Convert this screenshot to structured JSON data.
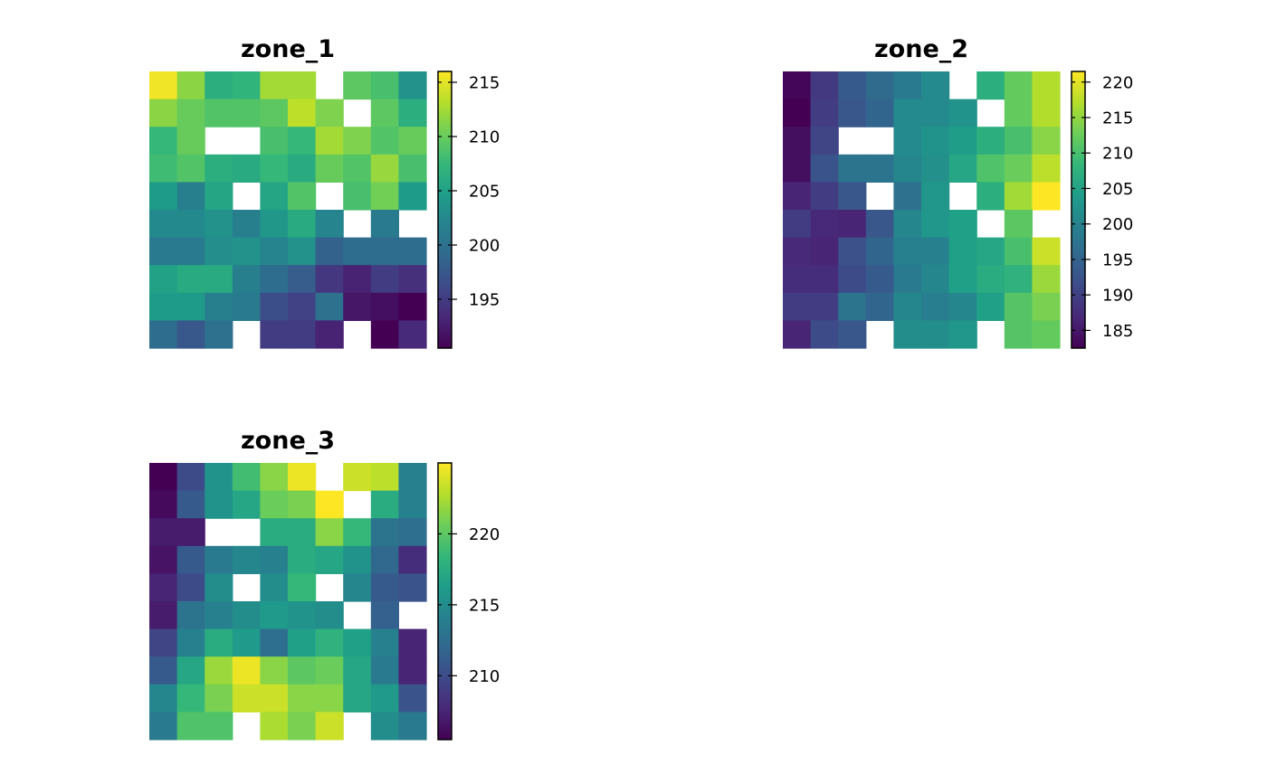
{
  "chart_data": [
    {
      "type": "heatmap",
      "title": "zone_1",
      "colorbar": {
        "range": [
          190.5,
          216
        ],
        "ticks": [
          215,
          210,
          205,
          200,
          195
        ]
      },
      "values": [
        [
          215.5,
          211.5,
          206.5,
          207.0,
          212.5,
          212.5,
          null,
          209.5,
          208.5,
          203.5
        ],
        [
          211.5,
          210.0,
          209.0,
          209.0,
          209.5,
          213.5,
          211.0,
          null,
          209.5,
          206.5
        ],
        [
          207.5,
          210.0,
          null,
          null,
          208.5,
          207.5,
          212.5,
          211.0,
          209.0,
          210.0
        ],
        [
          208.0,
          209.0,
          206.5,
          206.0,
          207.5,
          206.0,
          210.0,
          209.0,
          212.0,
          208.5
        ],
        [
          204.5,
          201.5,
          205.5,
          null,
          205.5,
          209.0,
          null,
          208.5,
          210.5,
          204.5
        ],
        [
          202.5,
          202.5,
          203.5,
          201.5,
          204.0,
          206.0,
          202.0,
          null,
          201.0,
          null
        ],
        [
          201.0,
          201.0,
          203.0,
          203.5,
          202.0,
          203.5,
          198.5,
          199.5,
          199.5,
          199.5
        ],
        [
          205.0,
          206.0,
          206.0,
          201.5,
          199.5,
          198.0,
          194.5,
          193.0,
          195.0,
          194.0
        ],
        [
          204.5,
          204.5,
          201.5,
          201.0,
          196.5,
          195.5,
          200.0,
          192.0,
          191.5,
          190.5
        ],
        [
          199.5,
          197.5,
          200.0,
          null,
          195.0,
          195.0,
          193.0,
          null,
          190.5,
          193.5
        ]
      ]
    },
    {
      "type": "heatmap",
      "title": "zone_2",
      "colorbar": {
        "range": [
          182.5,
          221.5
        ],
        "ticks": [
          220,
          215,
          210,
          205,
          200,
          195,
          190,
          185
        ]
      },
      "values": [
        [
          183.0,
          189.0,
          193.5,
          196.0,
          198.5,
          201.0,
          null,
          207.0,
          212.0,
          217.0
        ],
        [
          182.5,
          189.5,
          193.0,
          195.0,
          201.0,
          201.0,
          202.5,
          null,
          212.0,
          217.0
        ],
        [
          184.0,
          190.5,
          null,
          null,
          201.0,
          202.5,
          204.0,
          207.0,
          210.0,
          214.5
        ],
        [
          184.0,
          192.5,
          197.5,
          197.5,
          200.5,
          202.0,
          205.5,
          210.5,
          212.5,
          217.5
        ],
        [
          186.5,
          189.5,
          193.0,
          null,
          197.0,
          203.0,
          null,
          207.0,
          216.0,
          221.5
        ],
        [
          189.5,
          187.0,
          186.5,
          193.0,
          200.5,
          203.0,
          204.5,
          null,
          211.5,
          null
        ],
        [
          187.0,
          186.5,
          192.0,
          195.0,
          199.5,
          199.5,
          204.5,
          205.5,
          210.0,
          218.5
        ],
        [
          187.5,
          187.5,
          191.5,
          193.5,
          198.5,
          200.5,
          204.5,
          206.5,
          207.5,
          215.5
        ],
        [
          189.5,
          189.5,
          197.5,
          195.0,
          200.5,
          199.0,
          200.5,
          204.5,
          211.0,
          213.5
        ],
        [
          186.5,
          191.5,
          193.0,
          null,
          201.5,
          201.5,
          203.0,
          null,
          211.0,
          212.0
        ]
      ]
    },
    {
      "type": "heatmap",
      "title": "zone_3",
      "colorbar": {
        "range": [
          205.5,
          225
        ],
        "ticks": [
          220,
          215,
          210
        ]
      },
      "values": [
        [
          205.5,
          210.0,
          215.5,
          219.0,
          221.5,
          224.5,
          null,
          223.5,
          223.0,
          214.0
        ],
        [
          206.0,
          211.0,
          215.5,
          217.0,
          220.5,
          221.0,
          225.0,
          null,
          217.5,
          214.0
        ],
        [
          207.0,
          207.0,
          null,
          null,
          217.5,
          217.5,
          221.5,
          218.5,
          213.0,
          212.5
        ],
        [
          206.5,
          211.0,
          213.5,
          214.5,
          214.0,
          217.5,
          217.0,
          215.5,
          212.0,
          208.0
        ],
        [
          207.5,
          210.0,
          215.0,
          null,
          215.0,
          218.5,
          null,
          214.5,
          211.0,
          210.5
        ],
        [
          207.0,
          213.0,
          214.0,
          215.0,
          216.0,
          215.5,
          215.0,
          null,
          211.5,
          null
        ],
        [
          209.5,
          214.0,
          217.5,
          216.0,
          212.5,
          216.5,
          218.0,
          216.5,
          214.0,
          207.5
        ],
        [
          211.0,
          217.0,
          222.0,
          224.5,
          221.5,
          220.0,
          220.5,
          217.0,
          213.5,
          207.5
        ],
        [
          214.5,
          218.5,
          221.0,
          223.5,
          223.5,
          221.5,
          221.5,
          217.0,
          216.0,
          210.5
        ],
        [
          213.5,
          219.5,
          219.5,
          null,
          222.5,
          221.0,
          223.5,
          null,
          215.0,
          213.5
        ]
      ]
    }
  ]
}
